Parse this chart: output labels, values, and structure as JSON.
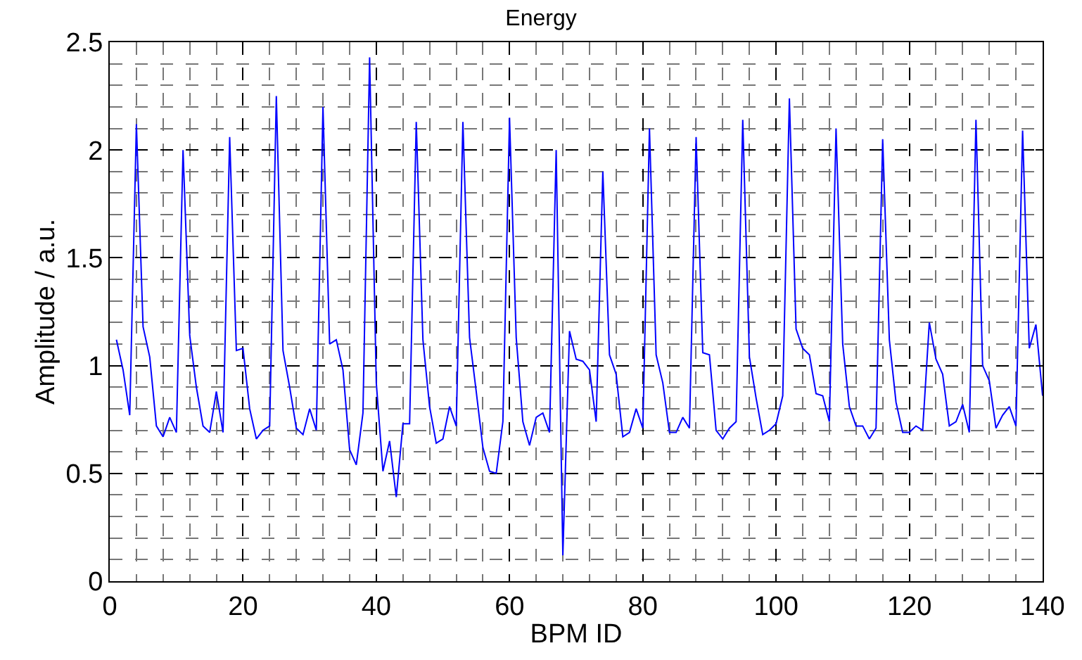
{
  "chart_data": {
    "type": "line",
    "title": "Energy",
    "xlabel": "BPM ID",
    "ylabel": "Amplitude / a.u.",
    "x": [
      1,
      2,
      3,
      4,
      5,
      6,
      7,
      8,
      9,
      10,
      11,
      12,
      13,
      14,
      15,
      16,
      17,
      18,
      19,
      20,
      21,
      22,
      23,
      24,
      25,
      26,
      27,
      28,
      29,
      30,
      31,
      32,
      33,
      34,
      35,
      36,
      37,
      38,
      39,
      40,
      41,
      42,
      43,
      44,
      45,
      46,
      47,
      48,
      49,
      50,
      51,
      52,
      53,
      54,
      55,
      56,
      57,
      58,
      59,
      60,
      61,
      62,
      63,
      64,
      65,
      66,
      67,
      68,
      69,
      70,
      71,
      72,
      73,
      74,
      75,
      76,
      77,
      78,
      79,
      80,
      81,
      82,
      83,
      84,
      85,
      86,
      87,
      88,
      89,
      90,
      91,
      92,
      93,
      94,
      95,
      96,
      97,
      98,
      99,
      100,
      101,
      102,
      103,
      104,
      105,
      106,
      107,
      108,
      109,
      110,
      111,
      112,
      113,
      114,
      115,
      116,
      117,
      118,
      119,
      120,
      121,
      122,
      123,
      124,
      125,
      126,
      127,
      128,
      129,
      130,
      131,
      132,
      133,
      134,
      135,
      136,
      137,
      138,
      139,
      140
    ],
    "series": [
      {
        "color": "#0000ff",
        "values": [
          1.12,
          0.98,
          0.77,
          2.12,
          1.18,
          1.04,
          0.72,
          0.67,
          0.76,
          0.69,
          2.0,
          1.14,
          0.9,
          0.72,
          0.69,
          0.88,
          0.69,
          2.06,
          1.07,
          1.08,
          0.8,
          0.66,
          0.7,
          0.72,
          2.25,
          1.07,
          0.9,
          0.71,
          0.68,
          0.8,
          0.7,
          2.2,
          1.1,
          1.12,
          0.98,
          0.61,
          0.54,
          0.78,
          2.43,
          0.92,
          0.51,
          0.65,
          0.39,
          0.73,
          0.73,
          2.13,
          1.12,
          0.81,
          0.64,
          0.66,
          0.81,
          0.72,
          2.13,
          1.13,
          0.88,
          0.62,
          0.51,
          0.5,
          0.74,
          2.15,
          1.13,
          0.74,
          0.63,
          0.76,
          0.78,
          0.69,
          2.0,
          0.12,
          1.16,
          1.03,
          1.02,
          0.98,
          0.74,
          1.9,
          1.05,
          0.96,
          0.67,
          0.69,
          0.8,
          0.71,
          2.1,
          1.05,
          0.92,
          0.69,
          0.69,
          0.76,
          0.71,
          2.06,
          1.06,
          1.05,
          0.7,
          0.66,
          0.71,
          0.74,
          2.14,
          1.04,
          0.85,
          0.68,
          0.7,
          0.73,
          0.86,
          2.24,
          1.17,
          1.08,
          1.05,
          0.87,
          0.86,
          0.74,
          2.1,
          1.1,
          0.81,
          0.72,
          0.72,
          0.66,
          0.71,
          2.05,
          1.12,
          0.83,
          0.69,
          0.69,
          0.72,
          0.7,
          1.2,
          1.03,
          0.96,
          0.72,
          0.74,
          0.82,
          0.69,
          2.14,
          1.0,
          0.93,
          0.71,
          0.77,
          0.81,
          0.72,
          2.09,
          1.08,
          1.19,
          0.86
        ]
      }
    ],
    "xlim": [
      0,
      140
    ],
    "xticks": [
      0,
      20,
      40,
      60,
      80,
      100,
      120,
      140
    ],
    "ylim": [
      0,
      2.5
    ],
    "yticks": [
      0,
      0.5,
      1,
      1.5,
      2,
      2.5
    ],
    "grid": true,
    "marker": "none",
    "line_style": "solid"
  }
}
